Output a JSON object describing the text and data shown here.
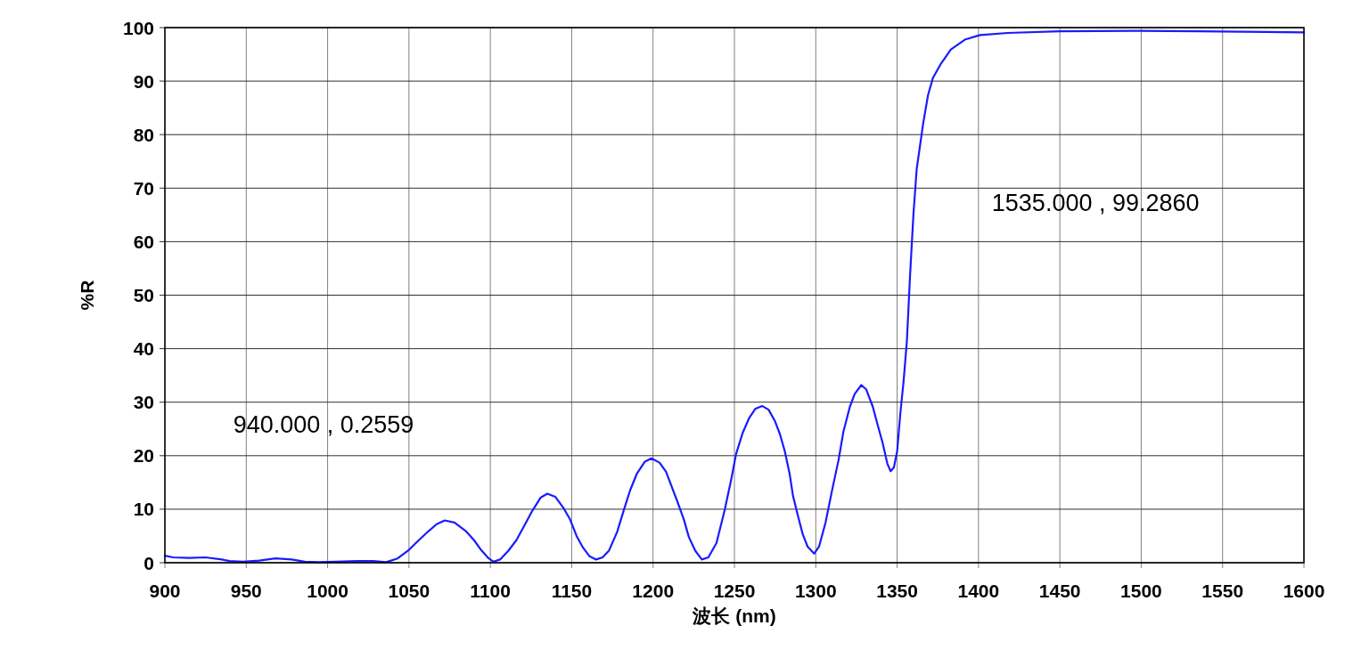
{
  "chart_data": {
    "type": "line",
    "xlabel": "波长 (nm)",
    "ylabel": "%R",
    "annotations": [
      "940.000 , 0.2559",
      "1535.000 , 99.2860"
    ],
    "xlim": [
      900,
      1600
    ],
    "ylim": [
      0,
      100
    ],
    "xticks": [
      900,
      950,
      1000,
      1050,
      1100,
      1150,
      1200,
      1250,
      1300,
      1350,
      1400,
      1450,
      1500,
      1550,
      1600
    ],
    "yticks": [
      0,
      10,
      20,
      30,
      40,
      50,
      60,
      70,
      80,
      90,
      100
    ],
    "grid": true,
    "series": [
      {
        "color": "#1a1aff",
        "x": [
          900,
          905,
          915,
          925,
          935,
          940,
          948,
          958,
          968,
          978,
          986,
          994,
          1005,
          1018,
          1028,
          1036,
          1043,
          1050,
          1056,
          1062,
          1067,
          1072,
          1078,
          1085,
          1090,
          1094,
          1099,
          1102,
          1106,
          1111,
          1116,
          1121,
          1126,
          1131,
          1135,
          1140,
          1145,
          1149,
          1153,
          1157,
          1161,
          1165,
          1169,
          1173,
          1178,
          1182,
          1186,
          1190,
          1195,
          1199,
          1204,
          1208,
          1212,
          1215,
          1219,
          1222,
          1226,
          1230,
          1234,
          1239,
          1244,
          1248,
          1251,
          1255,
          1259,
          1263,
          1267,
          1271,
          1275,
          1278,
          1281,
          1284,
          1286,
          1289,
          1292,
          1295,
          1299,
          1302,
          1306,
          1310,
          1314,
          1317,
          1321,
          1324,
          1328,
          1331,
          1335,
          1338,
          1341,
          1344,
          1346,
          1348,
          1350,
          1352,
          1354,
          1356,
          1358,
          1360,
          1362,
          1366,
          1369,
          1372,
          1377,
          1383,
          1392,
          1401,
          1418,
          1450,
          1498,
          1535,
          1576,
          1600
        ],
        "values": [
          1.3,
          1.0,
          0.9,
          1.0,
          0.6,
          0.3,
          0.2,
          0.4,
          0.8,
          0.6,
          0.2,
          0.1,
          0.2,
          0.3,
          0.3,
          0.1,
          0.8,
          2.4,
          4.2,
          5.9,
          7.2,
          7.9,
          7.5,
          5.9,
          4.2,
          2.5,
          0.8,
          0.2,
          0.6,
          2.2,
          4.2,
          7.0,
          9.8,
          12.2,
          12.9,
          12.3,
          10.2,
          8.1,
          5.0,
          2.8,
          1.2,
          0.6,
          1.0,
          2.3,
          5.8,
          9.8,
          13.6,
          16.6,
          18.9,
          19.5,
          18.7,
          17.0,
          13.8,
          11.4,
          8.0,
          4.8,
          2.2,
          0.6,
          1.0,
          3.7,
          9.8,
          15.5,
          20.3,
          24.2,
          27.0,
          28.8,
          29.3,
          28.6,
          26.4,
          24.0,
          20.8,
          16.5,
          12.5,
          8.8,
          5.3,
          3.0,
          1.7,
          3.0,
          7.5,
          13.5,
          19.2,
          24.5,
          29.2,
          31.6,
          33.2,
          32.4,
          29.2,
          25.8,
          22.5,
          18.5,
          17.1,
          17.8,
          20.8,
          28.0,
          34.0,
          41.5,
          54.0,
          65.0,
          73.5,
          82.1,
          87.4,
          90.6,
          93.3,
          95.9,
          97.8,
          98.6,
          99.0,
          99.3,
          99.4,
          99.3,
          99.2,
          99.1
        ]
      }
    ]
  }
}
